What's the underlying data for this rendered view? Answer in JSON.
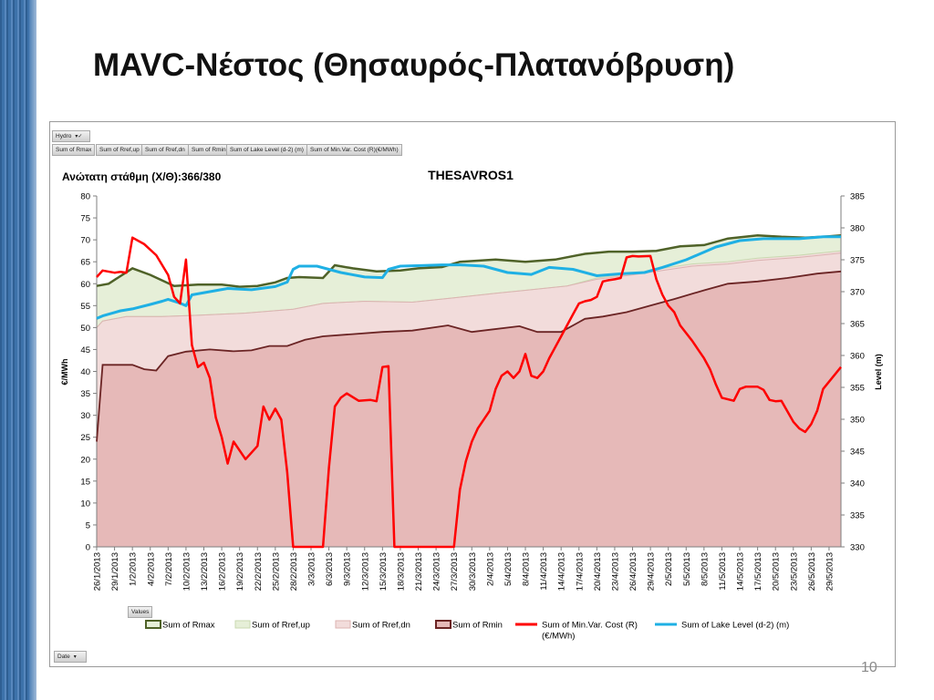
{
  "slide": {
    "title": "MAVC-Νέστος (Θησαυρός-Πλατανόβρυση)",
    "page_number": "10"
  },
  "pivot": {
    "page_field": "Hydro",
    "value_buttons": [
      "Sum of Rmax",
      "Sum of Rref,up",
      "Sum of Rref,dn",
      "Sum of Rmin",
      "Sum of Lake Level (d-2) (m)",
      "Sum of Min.Var. Cost (R)(€/MWh)"
    ],
    "values_label": "Values",
    "axis_field": "Date"
  },
  "colors": {
    "rmax": "#4f6228",
    "rref_up": "#e6efd8",
    "rref_dn": "#f2dcdb",
    "rmin": "#6b2424",
    "rmin_fill": "#e6b9b8",
    "cost": "#ff0000",
    "lake": "#1fb0e4"
  },
  "chart_data": {
    "type": "area",
    "title": "THESAVROS1",
    "annotation": "Ανώτατη στάθμη (Χ/Θ):366/380",
    "ylabel": "€/MWh",
    "ylabel_right": "Level (m)",
    "ylim": [
      0,
      80
    ],
    "ylim_right": [
      330,
      385
    ],
    "yticks": [
      0,
      5,
      10,
      15,
      20,
      25,
      30,
      35,
      40,
      45,
      50,
      55,
      60,
      65,
      70,
      75,
      80
    ],
    "yticks_right": [
      330,
      335,
      340,
      345,
      350,
      355,
      360,
      365,
      370,
      375,
      380,
      385
    ],
    "grid": false,
    "legend_position": "bottom",
    "x_start": "2013-01-26",
    "x_end": "2013-05-31",
    "x_tick_labels": [
      "26/1/2013",
      "29/1/2013",
      "1/2/2013",
      "4/2/2013",
      "7/2/2013",
      "10/2/2013",
      "13/2/2013",
      "16/2/2013",
      "19/2/2013",
      "22/2/2013",
      "25/2/2013",
      "28/2/2013",
      "3/3/2013",
      "6/3/2013",
      "9/3/2013",
      "12/3/2013",
      "15/3/2013",
      "18/3/2013",
      "21/3/2013",
      "24/3/2013",
      "27/3/2013",
      "30/3/2013",
      "2/4/2013",
      "5/4/2013",
      "8/4/2013",
      "11/4/2013",
      "14/4/2013",
      "17/4/2013",
      "20/4/2013",
      "23/4/2013",
      "26/4/2013",
      "29/4/2013",
      "2/5/2013",
      "5/5/2013",
      "8/5/2013",
      "11/5/2013",
      "14/5/2013",
      "17/5/2013",
      "20/5/2013",
      "23/5/2013",
      "26/5/2013",
      "29/5/2013"
    ],
    "series": [
      {
        "name": "Sum of Rmax",
        "kind": "area",
        "points": [
          [
            "2013-01-26",
            59.5
          ],
          [
            "2013-01-28",
            60
          ],
          [
            "2013-02-01",
            63.5
          ],
          [
            "2013-02-04",
            62
          ],
          [
            "2013-02-08",
            59.5
          ],
          [
            "2013-02-12",
            59.8
          ],
          [
            "2013-02-16",
            59.8
          ],
          [
            "2013-02-19",
            59.3
          ],
          [
            "2013-02-22",
            59.5
          ],
          [
            "2013-02-25",
            60.3
          ],
          [
            "2013-02-27",
            61.3
          ],
          [
            "2013-03-01",
            61.5
          ],
          [
            "2013-03-05",
            61.3
          ],
          [
            "2013-03-07",
            64.2
          ],
          [
            "2013-03-10",
            63.5
          ],
          [
            "2013-03-14",
            62.8
          ],
          [
            "2013-03-18",
            63
          ],
          [
            "2013-03-21",
            63.5
          ],
          [
            "2013-03-25",
            63.8
          ],
          [
            "2013-03-28",
            65
          ],
          [
            "2013-04-03",
            65.5
          ],
          [
            "2013-04-08",
            65
          ],
          [
            "2013-04-13",
            65.5
          ],
          [
            "2013-04-18",
            66.8
          ],
          [
            "2013-04-22",
            67.3
          ],
          [
            "2013-04-26",
            67.3
          ],
          [
            "2013-04-30",
            67.5
          ],
          [
            "2013-05-04",
            68.5
          ],
          [
            "2013-05-08",
            68.8
          ],
          [
            "2013-05-12",
            70.3
          ],
          [
            "2013-05-17",
            71
          ],
          [
            "2013-05-21",
            70.7
          ],
          [
            "2013-05-25",
            70.5
          ],
          [
            "2013-05-28",
            70.7
          ],
          [
            "2013-05-31",
            71
          ]
        ]
      },
      {
        "name": "Sum of Rref,up",
        "kind": "area",
        "points": [
          [
            "2013-01-26",
            50
          ],
          [
            "2013-01-27",
            51.5
          ],
          [
            "2013-01-31",
            52.5
          ],
          [
            "2013-02-06",
            52.5
          ],
          [
            "2013-02-12",
            52.8
          ],
          [
            "2013-02-20",
            53.3
          ],
          [
            "2013-02-28",
            54.2
          ],
          [
            "2013-03-05",
            55.5
          ],
          [
            "2013-03-12",
            56
          ],
          [
            "2013-03-20",
            55.8
          ],
          [
            "2013-03-27",
            56.8
          ],
          [
            "2013-04-03",
            57.8
          ],
          [
            "2013-04-08",
            58.5
          ],
          [
            "2013-04-15",
            59.5
          ],
          [
            "2013-04-20",
            61.3
          ],
          [
            "2013-04-26",
            62.3
          ],
          [
            "2013-05-01",
            63.5
          ],
          [
            "2013-05-06",
            64.5
          ],
          [
            "2013-05-12",
            65
          ],
          [
            "2013-05-17",
            65.8
          ],
          [
            "2013-05-24",
            66.5
          ],
          [
            "2013-05-31",
            67.5
          ]
        ]
      },
      {
        "name": "Sum of Rref,dn",
        "kind": "area",
        "points": [
          [
            "2013-01-26",
            50
          ],
          [
            "2013-01-27",
            51.5
          ],
          [
            "2013-01-31",
            52.5
          ],
          [
            "2013-02-06",
            52.5
          ],
          [
            "2013-02-12",
            52.8
          ],
          [
            "2013-02-20",
            53.3
          ],
          [
            "2013-02-28",
            54.2
          ],
          [
            "2013-03-05",
            55.5
          ],
          [
            "2013-03-12",
            56
          ],
          [
            "2013-03-20",
            55.8
          ],
          [
            "2013-03-27",
            56.8
          ],
          [
            "2013-04-03",
            57.8
          ],
          [
            "2013-04-08",
            58.5
          ],
          [
            "2013-04-15",
            59.5
          ],
          [
            "2013-04-20",
            61
          ],
          [
            "2013-04-26",
            62
          ],
          [
            "2013-05-01",
            63
          ],
          [
            "2013-05-06",
            64
          ],
          [
            "2013-05-12",
            64.5
          ],
          [
            "2013-05-17",
            65.3
          ],
          [
            "2013-05-24",
            66
          ],
          [
            "2013-05-31",
            67
          ]
        ]
      },
      {
        "name": "Sum of Rmin",
        "kind": "area",
        "points": [
          [
            "2013-01-26",
            24
          ],
          [
            "2013-01-27",
            41.5
          ],
          [
            "2013-02-01",
            41.5
          ],
          [
            "2013-02-03",
            40.5
          ],
          [
            "2013-02-05",
            40.2
          ],
          [
            "2013-02-07",
            43.5
          ],
          [
            "2013-02-10",
            44.5
          ],
          [
            "2013-02-14",
            45
          ],
          [
            "2013-02-18",
            44.6
          ],
          [
            "2013-02-21",
            44.8
          ],
          [
            "2013-02-24",
            45.8
          ],
          [
            "2013-02-27",
            45.8
          ],
          [
            "2013-03-02",
            47.2
          ],
          [
            "2013-03-05",
            48
          ],
          [
            "2013-03-10",
            48.5
          ],
          [
            "2013-03-15",
            49
          ],
          [
            "2013-03-20",
            49.3
          ],
          [
            "2013-03-26",
            50.5
          ],
          [
            "2013-03-30",
            49
          ],
          [
            "2013-04-02",
            49.5
          ],
          [
            "2013-04-07",
            50.3
          ],
          [
            "2013-04-10",
            49
          ],
          [
            "2013-04-14",
            49
          ],
          [
            "2013-04-18",
            52
          ],
          [
            "2013-04-21",
            52.5
          ],
          [
            "2013-04-25",
            53.5
          ],
          [
            "2013-04-29",
            55
          ],
          [
            "2013-05-03",
            56.5
          ],
          [
            "2013-05-08",
            58.5
          ],
          [
            "2013-05-12",
            60
          ],
          [
            "2013-05-17",
            60.5
          ],
          [
            "2013-05-22",
            61.3
          ],
          [
            "2013-05-27",
            62.3
          ],
          [
            "2013-05-31",
            62.8
          ]
        ]
      },
      {
        "name": "Sum of Min.Var. Cost (R)\n(€/MWh)",
        "kind": "line",
        "points": [
          [
            "2013-01-26",
            61.5
          ],
          [
            "2013-01-27",
            63
          ],
          [
            "2013-01-29",
            62.5
          ],
          [
            "2013-01-30",
            62.7
          ],
          [
            "2013-01-31",
            62.5
          ],
          [
            "2013-02-01",
            70.5
          ],
          [
            "2013-02-03",
            69
          ],
          [
            "2013-02-05",
            66.5
          ],
          [
            "2013-02-07",
            62
          ],
          [
            "2013-02-08",
            57
          ],
          [
            "2013-02-09",
            55.5
          ],
          [
            "2013-02-10",
            65.5
          ],
          [
            "2013-02-11",
            46
          ],
          [
            "2013-02-12",
            41
          ],
          [
            "2013-02-13",
            42
          ],
          [
            "2013-02-14",
            38.5
          ],
          [
            "2013-02-15",
            29.5
          ],
          [
            "2013-02-16",
            25
          ],
          [
            "2013-02-17",
            19
          ],
          [
            "2013-02-18",
            24
          ],
          [
            "2013-02-20",
            20
          ],
          [
            "2013-02-22",
            23
          ],
          [
            "2013-02-23",
            32
          ],
          [
            "2013-02-24",
            29
          ],
          [
            "2013-02-25",
            31.5
          ],
          [
            "2013-02-26",
            29
          ],
          [
            "2013-02-27",
            17
          ],
          [
            "2013-02-28",
            0
          ],
          [
            "2013-03-05",
            0
          ],
          [
            "2013-03-06",
            18
          ],
          [
            "2013-03-07",
            32
          ],
          [
            "2013-03-08",
            34
          ],
          [
            "2013-03-09",
            35
          ],
          [
            "2013-03-11",
            33.3
          ],
          [
            "2013-03-13",
            33.5
          ],
          [
            "2013-03-14",
            33.2
          ],
          [
            "2013-03-15",
            41
          ],
          [
            "2013-03-16",
            41.2
          ],
          [
            "2013-03-17",
            0
          ],
          [
            "2013-03-27",
            0
          ],
          [
            "2013-03-28",
            13
          ],
          [
            "2013-03-29",
            19.5
          ],
          [
            "2013-03-30",
            24
          ],
          [
            "2013-03-31",
            27
          ],
          [
            "2013-04-02",
            31
          ],
          [
            "2013-04-03",
            36
          ],
          [
            "2013-04-04",
            39
          ],
          [
            "2013-04-05",
            40
          ],
          [
            "2013-04-06",
            38.5
          ],
          [
            "2013-04-07",
            40
          ],
          [
            "2013-04-08",
            44
          ],
          [
            "2013-04-09",
            39
          ],
          [
            "2013-04-10",
            38.5
          ],
          [
            "2013-04-11",
            40
          ],
          [
            "2013-04-12",
            43
          ],
          [
            "2013-04-14",
            48
          ],
          [
            "2013-04-16",
            53
          ],
          [
            "2013-04-17",
            55.5
          ],
          [
            "2013-04-18",
            56
          ],
          [
            "2013-04-19",
            56.3
          ],
          [
            "2013-04-20",
            57
          ],
          [
            "2013-04-21",
            60.5
          ],
          [
            "2013-04-22",
            60.8
          ],
          [
            "2013-04-23",
            61
          ],
          [
            "2013-04-24",
            61.3
          ],
          [
            "2013-04-25",
            66
          ],
          [
            "2013-04-26",
            66.3
          ],
          [
            "2013-04-27",
            66.2
          ],
          [
            "2013-04-29",
            66.3
          ],
          [
            "2013-04-30",
            61
          ],
          [
            "2013-05-01",
            57.5
          ],
          [
            "2013-05-02",
            55
          ],
          [
            "2013-05-03",
            53.5
          ],
          [
            "2013-05-04",
            50.5
          ],
          [
            "2013-05-06",
            47
          ],
          [
            "2013-05-07",
            45
          ],
          [
            "2013-05-08",
            43
          ],
          [
            "2013-05-09",
            40.5
          ],
          [
            "2013-05-10",
            37
          ],
          [
            "2013-05-11",
            34
          ],
          [
            "2013-05-13",
            33.3
          ],
          [
            "2013-05-14",
            36
          ],
          [
            "2013-05-15",
            36.5
          ],
          [
            "2013-05-17",
            36.5
          ],
          [
            "2013-05-18",
            35.8
          ],
          [
            "2013-05-19",
            33.5
          ],
          [
            "2013-05-20",
            33.2
          ],
          [
            "2013-05-21",
            33.3
          ],
          [
            "2013-05-23",
            28.5
          ],
          [
            "2013-05-24",
            27
          ],
          [
            "2013-05-25",
            26.2
          ],
          [
            "2013-05-26",
            28
          ],
          [
            "2013-05-27",
            31
          ],
          [
            "2013-05-28",
            36
          ],
          [
            "2013-05-31",
            41
          ]
        ]
      },
      {
        "name": "Sum of Lake Level (d-2) (m)",
        "kind": "line",
        "axis": "right",
        "points": [
          [
            "2013-01-26",
            365.8
          ],
          [
            "2013-01-27",
            366.2
          ],
          [
            "2013-01-30",
            367
          ],
          [
            "2013-02-01",
            367.3
          ],
          [
            "2013-02-04",
            368
          ],
          [
            "2013-02-06",
            368.5
          ],
          [
            "2013-02-07",
            368.8
          ],
          [
            "2013-02-09",
            368.2
          ],
          [
            "2013-02-10",
            367.8
          ],
          [
            "2013-02-11",
            369.5
          ],
          [
            "2013-02-14",
            370
          ],
          [
            "2013-02-17",
            370.5
          ],
          [
            "2013-02-21",
            370.3
          ],
          [
            "2013-02-25",
            370.8
          ],
          [
            "2013-02-27",
            371.5
          ],
          [
            "2013-02-28",
            373.5
          ],
          [
            "2013-03-01",
            374
          ],
          [
            "2013-03-04",
            374
          ],
          [
            "2013-03-08",
            373
          ],
          [
            "2013-03-12",
            372.3
          ],
          [
            "2013-03-15",
            372.2
          ],
          [
            "2013-03-16",
            373.5
          ],
          [
            "2013-03-18",
            374
          ],
          [
            "2013-03-22",
            374.1
          ],
          [
            "2013-03-25",
            374.2
          ],
          [
            "2013-03-28",
            374.2
          ],
          [
            "2013-04-01",
            374
          ],
          [
            "2013-04-05",
            373
          ],
          [
            "2013-04-09",
            372.7
          ],
          [
            "2013-04-12",
            373.8
          ],
          [
            "2013-04-16",
            373.5
          ],
          [
            "2013-04-20",
            372.5
          ],
          [
            "2013-04-24",
            372.8
          ],
          [
            "2013-04-28",
            373
          ],
          [
            "2013-05-01",
            373.8
          ],
          [
            "2013-05-05",
            375
          ],
          [
            "2013-05-10",
            377
          ],
          [
            "2013-05-14",
            378
          ],
          [
            "2013-05-18",
            378.3
          ],
          [
            "2013-05-24",
            378.3
          ],
          [
            "2013-05-28",
            378.6
          ],
          [
            "2013-05-31",
            378.6
          ]
        ]
      }
    ]
  }
}
